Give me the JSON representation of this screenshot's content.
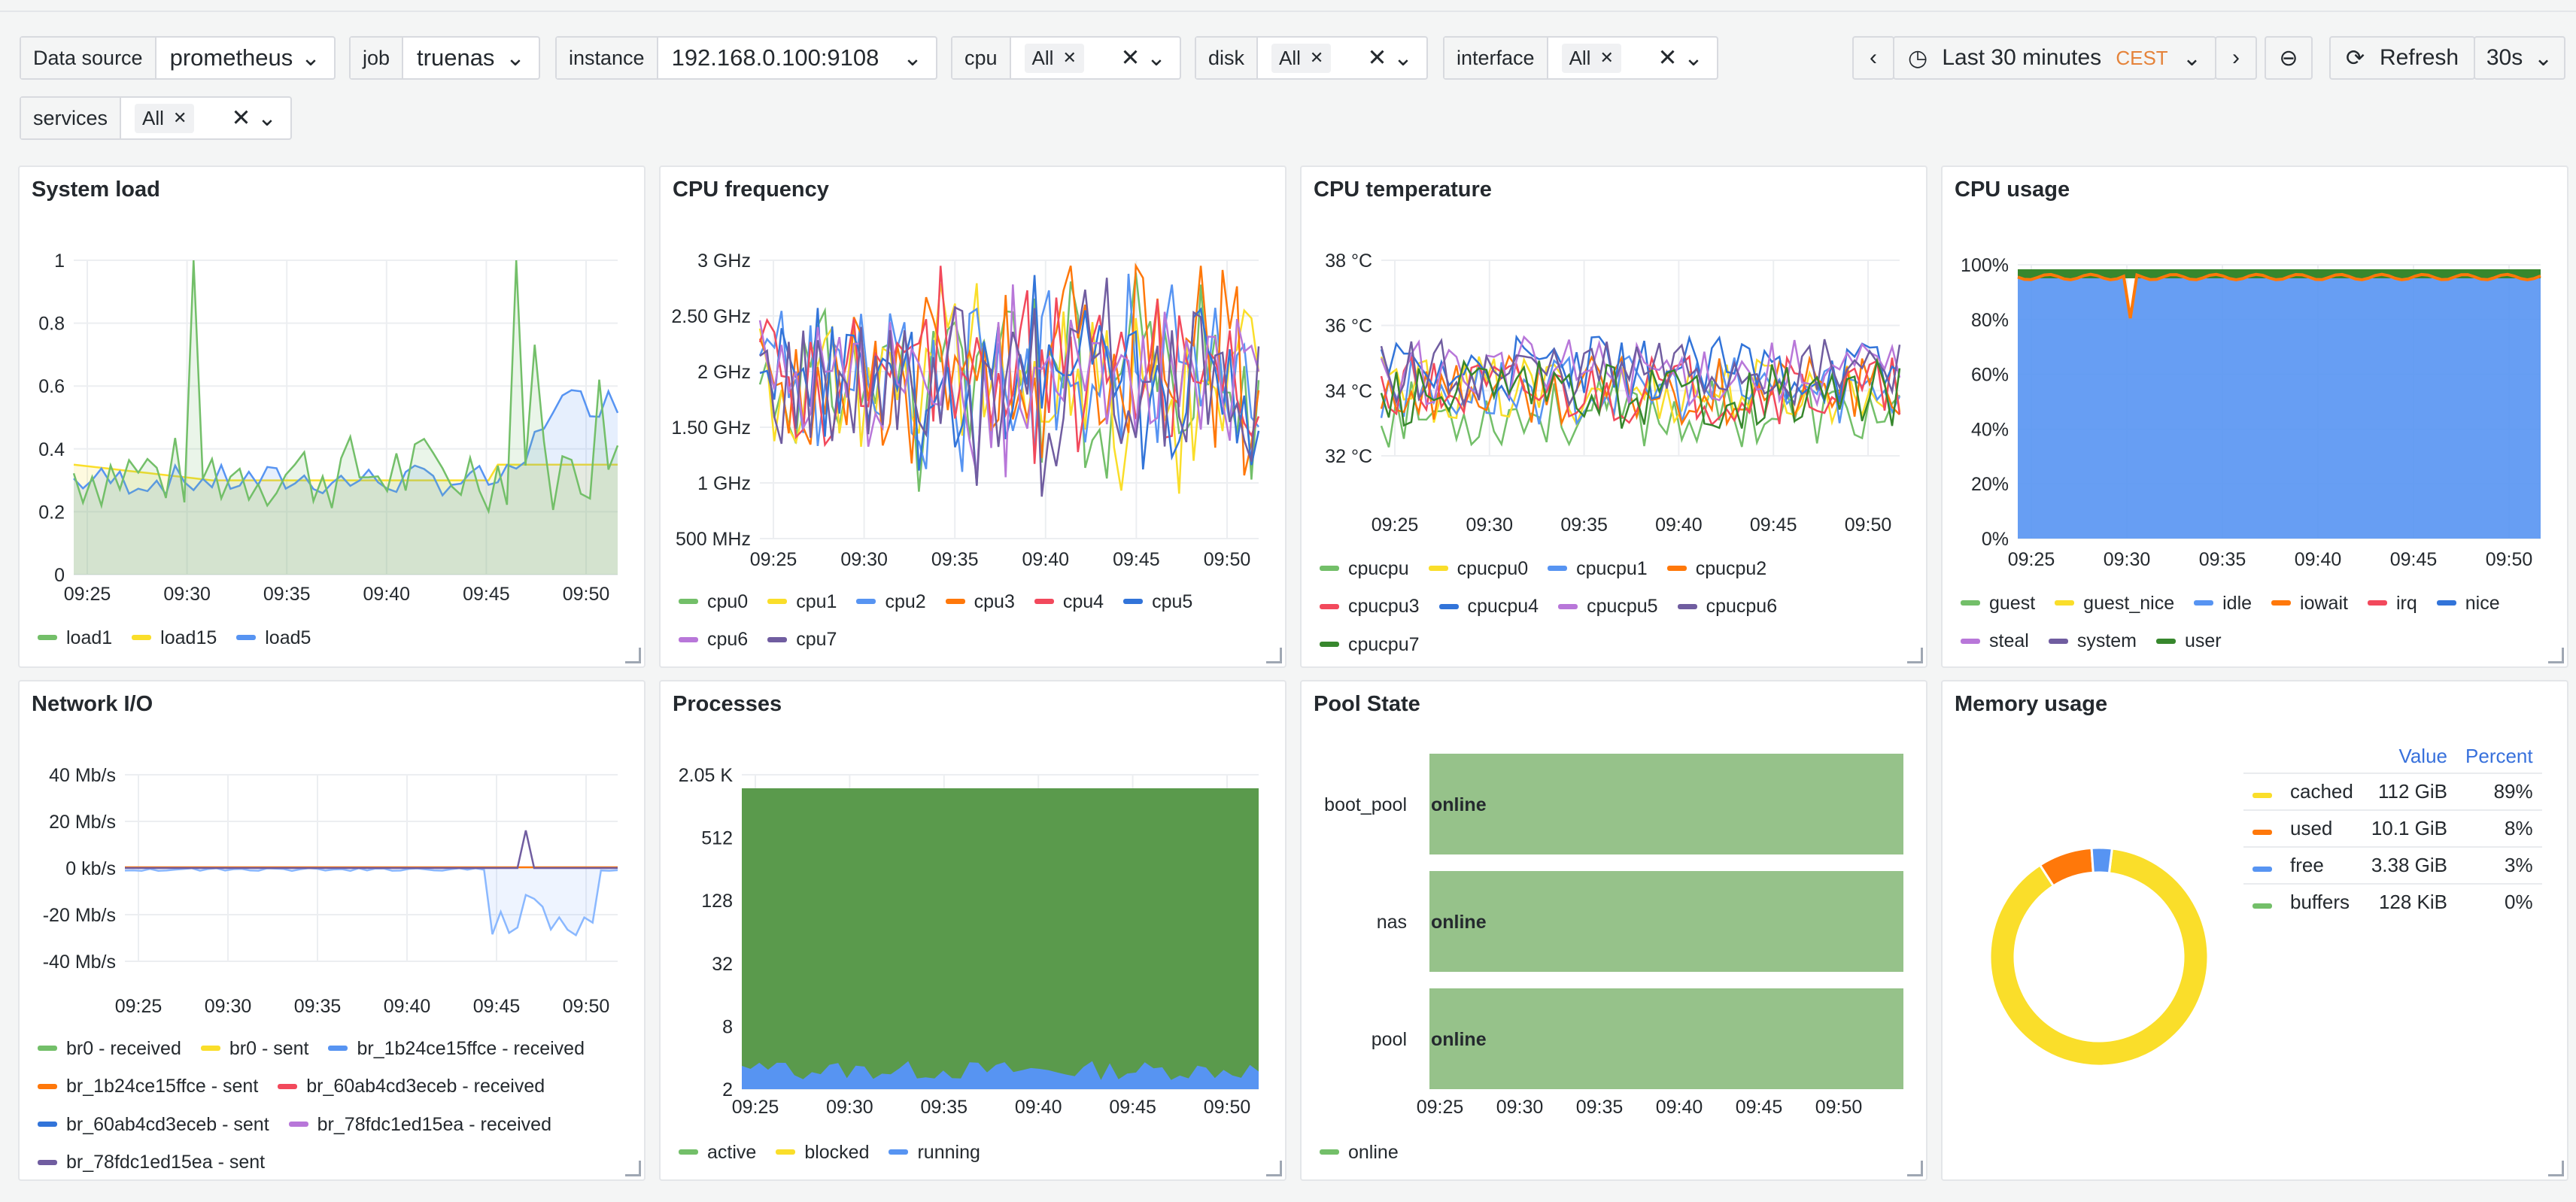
{
  "variables": [
    {
      "label": "Data source",
      "value": "prometheus"
    },
    {
      "label": "job",
      "value": "truenas"
    },
    {
      "label": "instance",
      "value": "192.168.0.100:9108"
    },
    {
      "label": "cpu",
      "chip": "All"
    },
    {
      "label": "disk",
      "chip": "All"
    },
    {
      "label": "interface",
      "chip": "All"
    },
    {
      "label": "services",
      "chip": "All"
    }
  ],
  "timepicker": {
    "range": "Last 30 minutes",
    "tz": "CEST",
    "refresh": "Refresh",
    "interval": "30s"
  },
  "colors": {
    "green": "#73bf69",
    "yellow": "#fade2a",
    "blue": "#5794f2",
    "orange": "#ff780a",
    "red": "#f2495c",
    "purple": "#b877d9",
    "darkpurple": "#705da0",
    "darkgreen": "#37872d",
    "poolgreen": "#96c28a"
  },
  "xticks": [
    "09:25",
    "09:30",
    "09:35",
    "09:40",
    "09:45",
    "09:50"
  ],
  "panels": {
    "load": {
      "title": "System load",
      "yticks": [
        "1",
        "0.8",
        "0.6",
        "0.4",
        "0.2",
        "0"
      ],
      "legend": [
        "load1",
        "load15",
        "load5"
      ]
    },
    "freq": {
      "title": "CPU frequency",
      "yticks": [
        "3 GHz",
        "2.50 GHz",
        "2 GHz",
        "1.50 GHz",
        "1 GHz",
        "500 MHz"
      ],
      "legend": [
        "cpu0",
        "cpu1",
        "cpu2",
        "cpu3",
        "cpu4",
        "cpu5",
        "cpu6",
        "cpu7"
      ]
    },
    "temp": {
      "title": "CPU temperature",
      "yticks": [
        "38 °C",
        "36 °C",
        "34 °C",
        "32 °C"
      ],
      "legend": [
        "cpucpu",
        "cpucpu0",
        "cpucpu1",
        "cpucpu2",
        "cpucpu3",
        "cpucpu4",
        "cpucpu5",
        "cpucpu6",
        "cpucpu7"
      ]
    },
    "usage": {
      "title": "CPU usage",
      "yticks": [
        "100%",
        "80%",
        "60%",
        "40%",
        "20%",
        "0%"
      ],
      "legend": [
        "guest",
        "guest_nice",
        "idle",
        "iowait",
        "irq",
        "nice",
        "steal",
        "system",
        "user"
      ]
    },
    "net": {
      "title": "Network I/O",
      "yticks": [
        "40 Mb/s",
        "20 Mb/s",
        "0 kb/s",
        "-20 Mb/s",
        "-40 Mb/s"
      ],
      "legend": [
        "br0 - received",
        "br0 - sent",
        "br_1b24ce15ffce - received",
        "br_1b24ce15ffce - sent",
        "br_60ab4cd3eceb - received",
        "br_60ab4cd3eceb - sent",
        "br_78fdc1ed15ea - received",
        "br_78fdc1ed15ea - sent"
      ]
    },
    "proc": {
      "title": "Processes",
      "yticks": [
        "2.05 K",
        "512",
        "128",
        "32",
        "8",
        "2"
      ],
      "legend": [
        "active",
        "blocked",
        "running"
      ]
    },
    "pool": {
      "title": "Pool State",
      "rows": [
        {
          "name": "boot_pool",
          "state": "online"
        },
        {
          "name": "nas",
          "state": "online"
        },
        {
          "name": "pool",
          "state": "online"
        }
      ],
      "legend": [
        "online"
      ]
    },
    "mem": {
      "title": "Memory usage",
      "header_value": "Value",
      "header_percent": "Percent",
      "rows": [
        {
          "name": "cached",
          "value": "112 GiB",
          "percent": "89%",
          "color": "#fade2a",
          "frac": 0.89
        },
        {
          "name": "used",
          "value": "10.1 GiB",
          "percent": "8%",
          "color": "#ff780a",
          "frac": 0.08
        },
        {
          "name": "free",
          "value": "3.38 GiB",
          "percent": "3%",
          "color": "#5794f2",
          "frac": 0.03
        },
        {
          "name": "buffers",
          "value": "128 KiB",
          "percent": "0%",
          "color": "#73bf69",
          "frac": 0.0
        }
      ]
    }
  }
}
